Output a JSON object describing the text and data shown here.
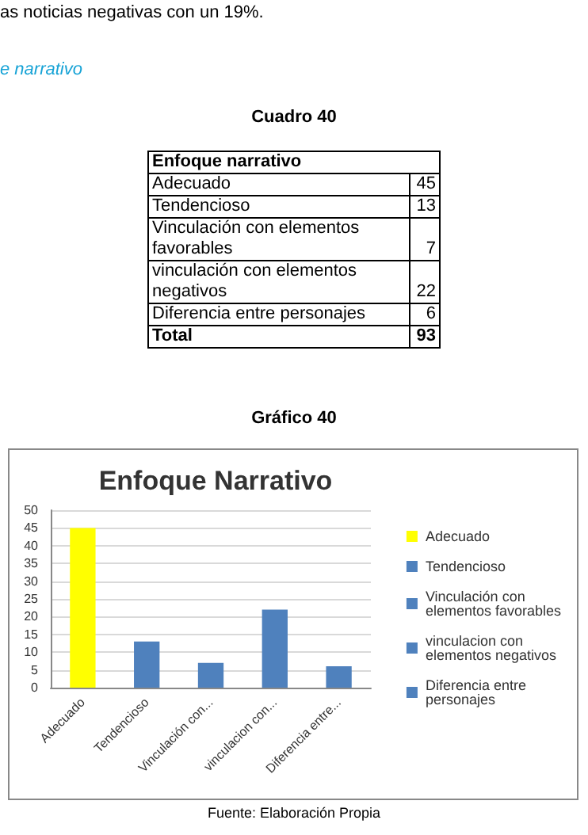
{
  "chart_data": [
    {
      "type": "other",
      "title": "Cuadro 40",
      "subtitle": "Enfoque narrativo",
      "categories": [
        "Adecuado",
        "Tendencioso",
        "Vinculación con elementos favorables",
        "vinculación con elementos negativos",
        "Diferencia entre personajes"
      ],
      "values": [
        45,
        13,
        7,
        22,
        6
      ],
      "data_labels": true,
      "annotations": [
        "as noticias negativas con un 19%.",
        "e narrativo",
        "Total",
        "93"
      ]
    },
    {
      "type": "bar",
      "title": "Enfoque Narrativo",
      "stacked": true,
      "categories": [
        "Adecuado",
        "Tendencioso",
        "Vinculación con...",
        "vinculacion con...",
        "Diferencia entre..."
      ],
      "series": [
        {
          "name": "Adecuado",
          "color": "#ffff00",
          "values": [
            45,
            null,
            null,
            null,
            null
          ]
        },
        {
          "name": "Tendencioso",
          "color": "#4f81bd",
          "values": [
            null,
            13,
            null,
            null,
            null
          ]
        },
        {
          "name": "Vinculación con elementos favorables",
          "color": "#4f81bd",
          "values": [
            null,
            null,
            7,
            null,
            null
          ]
        },
        {
          "name": "vinculacion con elementos negativos",
          "color": "#4f81bd",
          "values": [
            null,
            null,
            null,
            22,
            null
          ]
        },
        {
          "name": "Diferencia entre personajes",
          "color": "#4f81bd",
          "values": [
            null,
            null,
            null,
            null,
            6
          ]
        }
      ],
      "ylim": [
        0,
        50
      ],
      "yticks": [
        0,
        5,
        10,
        15,
        20,
        25,
        30,
        35,
        40,
        45,
        50
      ],
      "grid": "y",
      "legend": "right",
      "annotations": [
        "Gráfico 40",
        "Fuente: Elaboración Propia"
      ]
    }
  ]
}
